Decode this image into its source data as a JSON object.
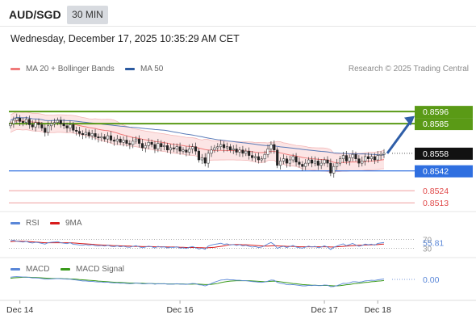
{
  "header": {
    "symbol": "AUD/SGD",
    "timeframe": "30 MIN",
    "datetime": "Wednesday, December 17, 2025 10:35:29 AM CET"
  },
  "legend": {
    "ma20": "MA 20 + Bollinger Bands",
    "ma50": "MA 50",
    "credit": "Research © 2025 Trading Central",
    "ma20_color": "#f07a7a",
    "ma50_color": "#2c5aa0"
  },
  "chart_data": [
    {
      "type": "candlestick",
      "title": "AUD/SGD",
      "ylim": [
        0.8505,
        0.8624
      ],
      "x_ticks": [
        "Dec 14",
        "Dec 16",
        "Dec 17",
        "Dec 18"
      ],
      "current_price": "0.8558",
      "levels": [
        {
          "value": 0.8596,
          "label": "0.8596",
          "kind": "resistance",
          "color": "#5a9a16"
        },
        {
          "value": 0.8585,
          "label": "0.8585",
          "kind": "resistance",
          "color": "#5a9a16"
        },
        {
          "value": 0.8558,
          "label": "0.8558",
          "kind": "last",
          "color": "#222222"
        },
        {
          "value": 0.8542,
          "label": "0.8542",
          "kind": "support",
          "color": "#2f6fe0"
        },
        {
          "value": 0.8524,
          "label": "0.8524",
          "kind": "support-2",
          "color": "#e04848"
        },
        {
          "value": 0.8513,
          "label": "0.8513",
          "kind": "support-3",
          "color": "#e04848"
        }
      ],
      "close": [
        0.8585,
        0.8588,
        0.859,
        0.8587,
        0.8586,
        0.8589,
        0.8584,
        0.8582,
        0.8586,
        0.8584,
        0.8581,
        0.8577,
        0.8583,
        0.8585,
        0.8586,
        0.8588,
        0.8585,
        0.8583,
        0.8581,
        0.8584,
        0.8579,
        0.8578,
        0.8576,
        0.8575,
        0.8577,
        0.8574,
        0.8576,
        0.8573,
        0.8572,
        0.8573,
        0.8571,
        0.8574,
        0.857,
        0.8569,
        0.8571,
        0.8568,
        0.857,
        0.8567,
        0.8566,
        0.8569,
        0.8571,
        0.8567,
        0.8563,
        0.8565,
        0.8568,
        0.8566,
        0.8562,
        0.8567,
        0.8564,
        0.8565,
        0.8561,
        0.8563,
        0.8562,
        0.8564,
        0.856,
        0.8561,
        0.8559,
        0.8562,
        0.8564,
        0.856,
        0.8552,
        0.8554,
        0.8549,
        0.8558,
        0.8561,
        0.8563,
        0.8564,
        0.8566,
        0.8563,
        0.8564,
        0.8561,
        0.8562,
        0.8559,
        0.8561,
        0.8558,
        0.856,
        0.8556,
        0.8554,
        0.8555,
        0.8552,
        0.8553,
        0.8557,
        0.8562,
        0.8566,
        0.8561,
        0.8547,
        0.8551,
        0.8553,
        0.8549,
        0.8552,
        0.8555,
        0.855,
        0.8548,
        0.8546,
        0.8549,
        0.8552,
        0.8549,
        0.8551,
        0.8547,
        0.8549,
        0.8552,
        0.8549,
        0.854,
        0.8546,
        0.8549,
        0.8553,
        0.8556,
        0.8551,
        0.8554,
        0.8557,
        0.8553,
        0.8549,
        0.8551,
        0.8555,
        0.8553,
        0.8555,
        0.8552,
        0.8556,
        0.8557,
        0.8558
      ]
    },
    {
      "type": "line",
      "title": "RSI",
      "series": [
        {
          "name": "RSI",
          "color": "#5a87d8"
        },
        {
          "name": "9MA",
          "color": "#d81c1c"
        }
      ],
      "ylim": [
        0,
        100
      ],
      "ref_lines": [
        "70",
        "30"
      ],
      "last_value": "55.81",
      "rsi": [
        64,
        66,
        62,
        60,
        58,
        61,
        56,
        54,
        57,
        55,
        52,
        49,
        55,
        57,
        58,
        60,
        55,
        53,
        51,
        55,
        48,
        47,
        45,
        44,
        47,
        43,
        46,
        42,
        41,
        43,
        40,
        44,
        39,
        38,
        41,
        37,
        40,
        36,
        35,
        39,
        42,
        37,
        33,
        36,
        40,
        37,
        32,
        39,
        35,
        37,
        32,
        35,
        34,
        37,
        31,
        33,
        30,
        35,
        38,
        33,
        27,
        31,
        26,
        40,
        45,
        48,
        50,
        53,
        48,
        50,
        45,
        47,
        43,
        46,
        41,
        44,
        39,
        36,
        38,
        34,
        36,
        42,
        50,
        56,
        47,
        30,
        36,
        39,
        34,
        38,
        43,
        36,
        33,
        31,
        36,
        40,
        36,
        39,
        33,
        36,
        41,
        36,
        25,
        35,
        40,
        46,
        50,
        42,
        47,
        52,
        45,
        39,
        43,
        49,
        46,
        49,
        44,
        52,
        54,
        55.81
      ],
      "ma9": [
        60,
        61,
        62,
        62,
        61,
        61,
        60,
        59,
        58,
        57,
        56,
        55,
        55,
        55,
        55,
        55,
        55,
        55,
        55,
        55,
        54,
        53,
        52,
        51,
        50,
        49,
        48,
        47,
        46,
        45,
        44,
        44,
        43,
        42,
        42,
        41,
        41,
        40,
        40,
        39,
        39,
        39,
        38,
        38,
        38,
        38,
        37,
        37,
        37,
        37,
        36,
        36,
        36,
        36,
        35,
        35,
        34,
        34,
        34,
        34,
        33,
        33,
        32,
        33,
        34,
        35,
        37,
        39,
        41,
        44,
        46,
        47,
        47,
        47,
        46,
        46,
        45,
        44,
        43,
        42,
        41,
        40,
        40,
        41,
        42,
        41,
        40,
        40,
        39,
        39,
        39,
        38,
        37,
        37,
        37,
        37,
        37,
        37,
        37,
        37,
        37,
        37,
        36,
        36,
        37,
        38,
        39,
        40,
        41,
        42,
        43,
        44,
        44,
        45,
        45,
        46,
        46,
        47,
        48,
        49
      ]
    },
    {
      "type": "line",
      "title": "MACD",
      "series": [
        {
          "name": "MACD",
          "color": "#5a87d8"
        },
        {
          "name": "MACD Signal",
          "color": "#3a9a1a"
        }
      ],
      "ylim": [
        -0.0009,
        0.0003
      ],
      "last_value": "0.00",
      "macd": [
        0.0001,
        0.00012,
        0.00013,
        0.00012,
        0.00011,
        0.00011,
        9e-05,
        7e-05,
        7e-05,
        6e-05,
        4e-05,
        1e-05,
        1e-05,
        2e-05,
        3e-05,
        4e-05,
        3e-05,
        2e-05,
        1e-05,
        1e-05,
        -1e-05,
        -3e-05,
        -5e-05,
        -7e-05,
        -7e-05,
        -9e-05,
        -9e-05,
        -0.00011,
        -0.00012,
        -0.00012,
        -0.00014,
        -0.00013,
        -0.00015,
        -0.00016,
        -0.00016,
        -0.00018,
        -0.00017,
        -0.00019,
        -0.0002,
        -0.00019,
        -0.00017,
        -0.00018,
        -0.00021,
        -0.00021,
        -0.00019,
        -0.00019,
        -0.00022,
        -0.0002,
        -0.00021,
        -0.0002,
        -0.00022,
        -0.00022,
        -0.00022,
        -0.0002,
        -0.00022,
        -0.00022,
        -0.00023,
        -0.00021,
        -0.00019,
        -0.0002,
        -0.00025,
        -0.00026,
        -0.0003,
        -0.00025,
        -0.00019,
        -0.00013,
        -8e-05,
        -3e-05,
        -2e-05,
        0.0,
        -2e-05,
        -2e-05,
        -4e-05,
        -4e-05,
        -6e-05,
        -6e-05,
        -8e-05,
        -0.0001,
        -0.00011,
        -0.00013,
        -0.00014,
        -0.00012,
        -8e-05,
        -3e-05,
        -4e-05,
        -0.00014,
        -0.00018,
        -0.0002,
        -0.00024,
        -0.00025,
        -0.00024,
        -0.00026,
        -0.00028,
        -0.0003,
        -0.0003,
        -0.00028,
        -0.00029,
        -0.00027,
        -0.00029,
        -0.00029,
        -0.00026,
        -0.00027,
        -0.00034,
        -0.00033,
        -0.00029,
        -0.00024,
        -0.00018,
        -0.00019,
        -0.00016,
        -0.00011,
        -0.00011,
        -0.00013,
        -0.00011,
        -7e-05,
        -6e-05,
        -4e-05,
        -5e-05,
        -2e-05,
        0.0,
        2e-05
      ],
      "signal": [
        5e-05,
        7e-05,
        8e-05,
        9e-05,
        0.0001,
        0.0001,
        0.0001,
        9e-05,
        9e-05,
        8e-05,
        7e-05,
        6e-05,
        5e-05,
        4e-05,
        4e-05,
        4e-05,
        4e-05,
        3e-05,
        3e-05,
        2e-05,
        2e-05,
        1e-05,
        -1e-05,
        -2e-05,
        -3e-05,
        -4e-05,
        -5e-05,
        -6e-05,
        -8e-05,
        -9e-05,
        -0.0001,
        -0.00011,
        -0.00012,
        -0.00013,
        -0.00014,
        -0.00014,
        -0.00015,
        -0.00016,
        -0.00017,
        -0.00017,
        -0.00017,
        -0.00018,
        -0.00018,
        -0.00019,
        -0.00019,
        -0.00019,
        -0.0002,
        -0.0002,
        -0.0002,
        -0.0002,
        -0.00021,
        -0.00021,
        -0.00021,
        -0.00021,
        -0.00021,
        -0.00021,
        -0.00022,
        -0.00022,
        -0.00022,
        -0.00021,
        -0.00022,
        -0.00023,
        -0.00024,
        -0.00024,
        -0.00023,
        -0.00021,
        -0.00019,
        -0.00015,
        -0.00012,
        -0.0001,
        -8e-05,
        -7e-05,
        -6e-05,
        -6e-05,
        -6e-05,
        -6e-05,
        -6e-05,
        -7e-05,
        -8e-05,
        -9e-05,
        -0.0001,
        -0.00011,
        -0.0001,
        -9e-05,
        -8e-05,
        -9e-05,
        -0.00011,
        -0.00013,
        -0.00015,
        -0.00017,
        -0.00019,
        -0.0002,
        -0.00022,
        -0.00024,
        -0.00025,
        -0.00026,
        -0.00027,
        -0.00027,
        -0.00028,
        -0.00028,
        -0.00028,
        -0.00028,
        -0.00029,
        -0.0003,
        -0.0003,
        -0.00029,
        -0.00027,
        -0.00025,
        -0.00024,
        -0.00021,
        -0.00019,
        -0.00018,
        -0.00016,
        -0.00014,
        -0.00013,
        -0.00011,
        -0.0001,
        -8e-05,
        -7e-05,
        -5e-05
      ]
    }
  ],
  "rsi_legend": {
    "rsi": "RSI",
    "ma9": "9MA",
    "rsi_color": "#5a87d8",
    "ma9_color": "#d81c1c"
  },
  "macd_legend": {
    "macd": "MACD",
    "signal": "MACD Signal",
    "macd_color": "#5a87d8",
    "signal_color": "#3a9a1a"
  }
}
